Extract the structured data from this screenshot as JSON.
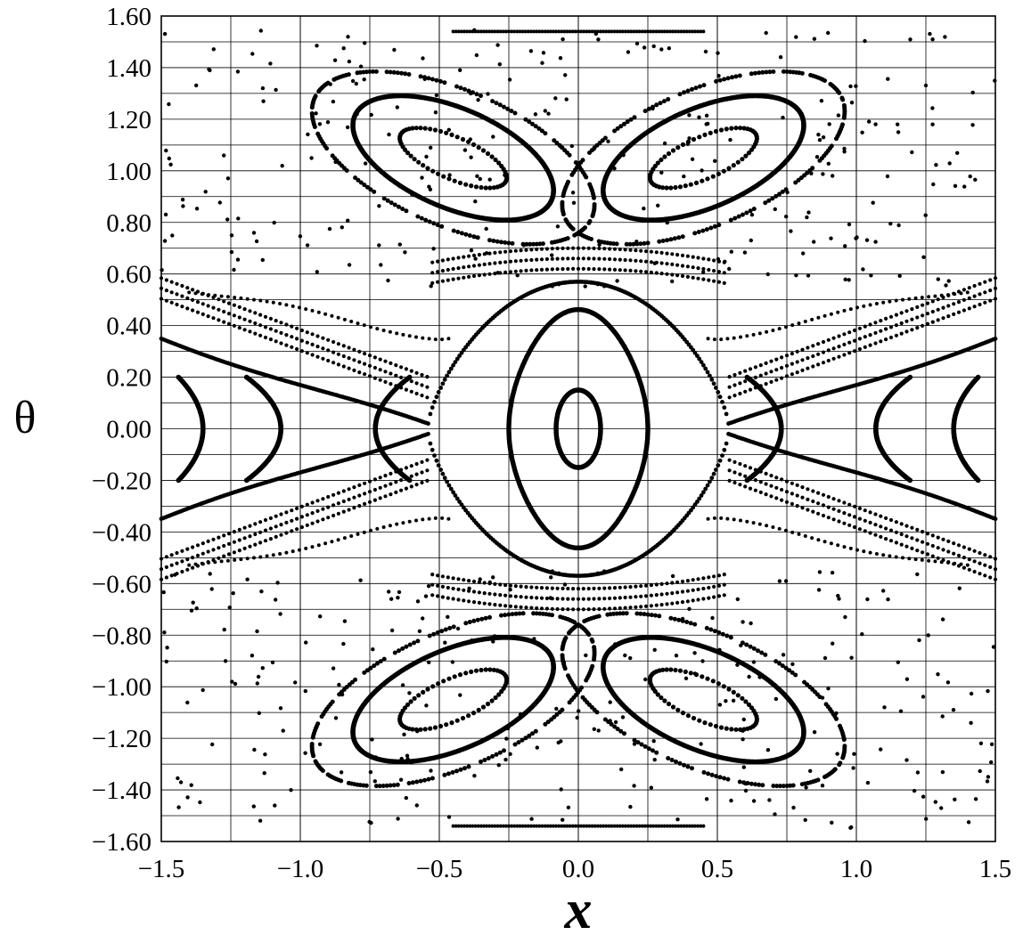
{
  "chart_data": {
    "type": "scatter",
    "title": "",
    "xlabel": "x",
    "ylabel": "θ",
    "xlim": [
      -1.5,
      1.5
    ],
    "ylim": [
      -1.6,
      1.6
    ],
    "grid": true,
    "legend": "none",
    "x_ticks": [
      "−1.5",
      "−1.0",
      "−0.5",
      "0.0",
      "0.5",
      "1.0",
      "1.5"
    ],
    "x_tick_values": [
      -1.5,
      -1.0,
      -0.5,
      0.0,
      0.5,
      1.0,
      1.5
    ],
    "y_ticks": [
      "1.60",
      "1.40",
      "1.20",
      "1.00",
      "0.80",
      "0.60",
      "0.40",
      "0.20",
      "0.00",
      "−0.20",
      "−0.40",
      "−0.60",
      "−0.80",
      "−1.00",
      "−1.20",
      "−1.40",
      "−1.60"
    ],
    "y_tick_values": [
      1.6,
      1.4,
      1.2,
      1.0,
      0.8,
      0.6,
      0.4,
      0.2,
      0.0,
      -0.2,
      -0.4,
      -0.6,
      -0.8,
      -1.0,
      -1.2,
      -1.4,
      -1.6
    ],
    "marker_color": "#000000",
    "series": [
      {
        "description_type": "closed-orbits",
        "orbits": [
          {
            "center": [
              0.0,
              0.0
            ],
            "half_width": 0.08,
            "half_height": 0.15,
            "style": "solid",
            "n": 160
          },
          {
            "center": [
              0.0,
              0.0
            ],
            "half_width": 0.25,
            "half_height": 0.42,
            "style": "solid",
            "n": 260
          },
          {
            "center": [
              0.0,
              0.0
            ],
            "half_width": 0.6,
            "half_height": 0.56,
            "style": "separatrix-inner",
            "n": 400
          },
          {
            "center": [
              0.0,
              0.0
            ],
            "half_width": 0.9,
            "half_height": 0.32,
            "style": "dotted-band",
            "n": 150
          }
        ]
      }
    ],
    "islands": [
      {
        "center": [
          -0.45,
          1.05
        ],
        "tilt": -1,
        "inner": [
          0.21,
          0.08
        ],
        "outer": [
          0.39,
          0.19
        ],
        "chain": [
          0.55,
          0.26
        ]
      },
      {
        "center": [
          0.45,
          1.05
        ],
        "tilt": 1,
        "inner": [
          0.21,
          0.08
        ],
        "outer": [
          0.39,
          0.19
        ],
        "chain": [
          0.55,
          0.26
        ]
      },
      {
        "center": [
          -0.45,
          -1.05
        ],
        "tilt": 1,
        "inner": [
          0.21,
          0.08
        ],
        "outer": [
          0.39,
          0.19
        ],
        "chain": [
          0.55,
          0.26
        ]
      },
      {
        "center": [
          0.45,
          -1.05
        ],
        "tilt": -1,
        "inner": [
          0.21,
          0.08
        ],
        "outer": [
          0.39,
          0.19
        ],
        "chain": [
          0.55,
          0.26
        ]
      }
    ],
    "side_orbits": [
      {
        "vertex_x": -0.73,
        "open": "right",
        "a": 0.2
      },
      {
        "vertex_x": -1.07,
        "open": "left",
        "a": 0.2
      },
      {
        "vertex_x": -1.35,
        "open": "left",
        "a": 0.2
      },
      {
        "vertex_x": 0.73,
        "open": "left",
        "a": 0.2
      },
      {
        "vertex_x": 1.07,
        "open": "right",
        "a": 0.2
      },
      {
        "vertex_x": 1.35,
        "open": "right",
        "a": 0.2
      }
    ],
    "hyperbolic_points": [
      [
        -0.54,
        0.0
      ],
      [
        0.54,
        0.0
      ]
    ]
  }
}
